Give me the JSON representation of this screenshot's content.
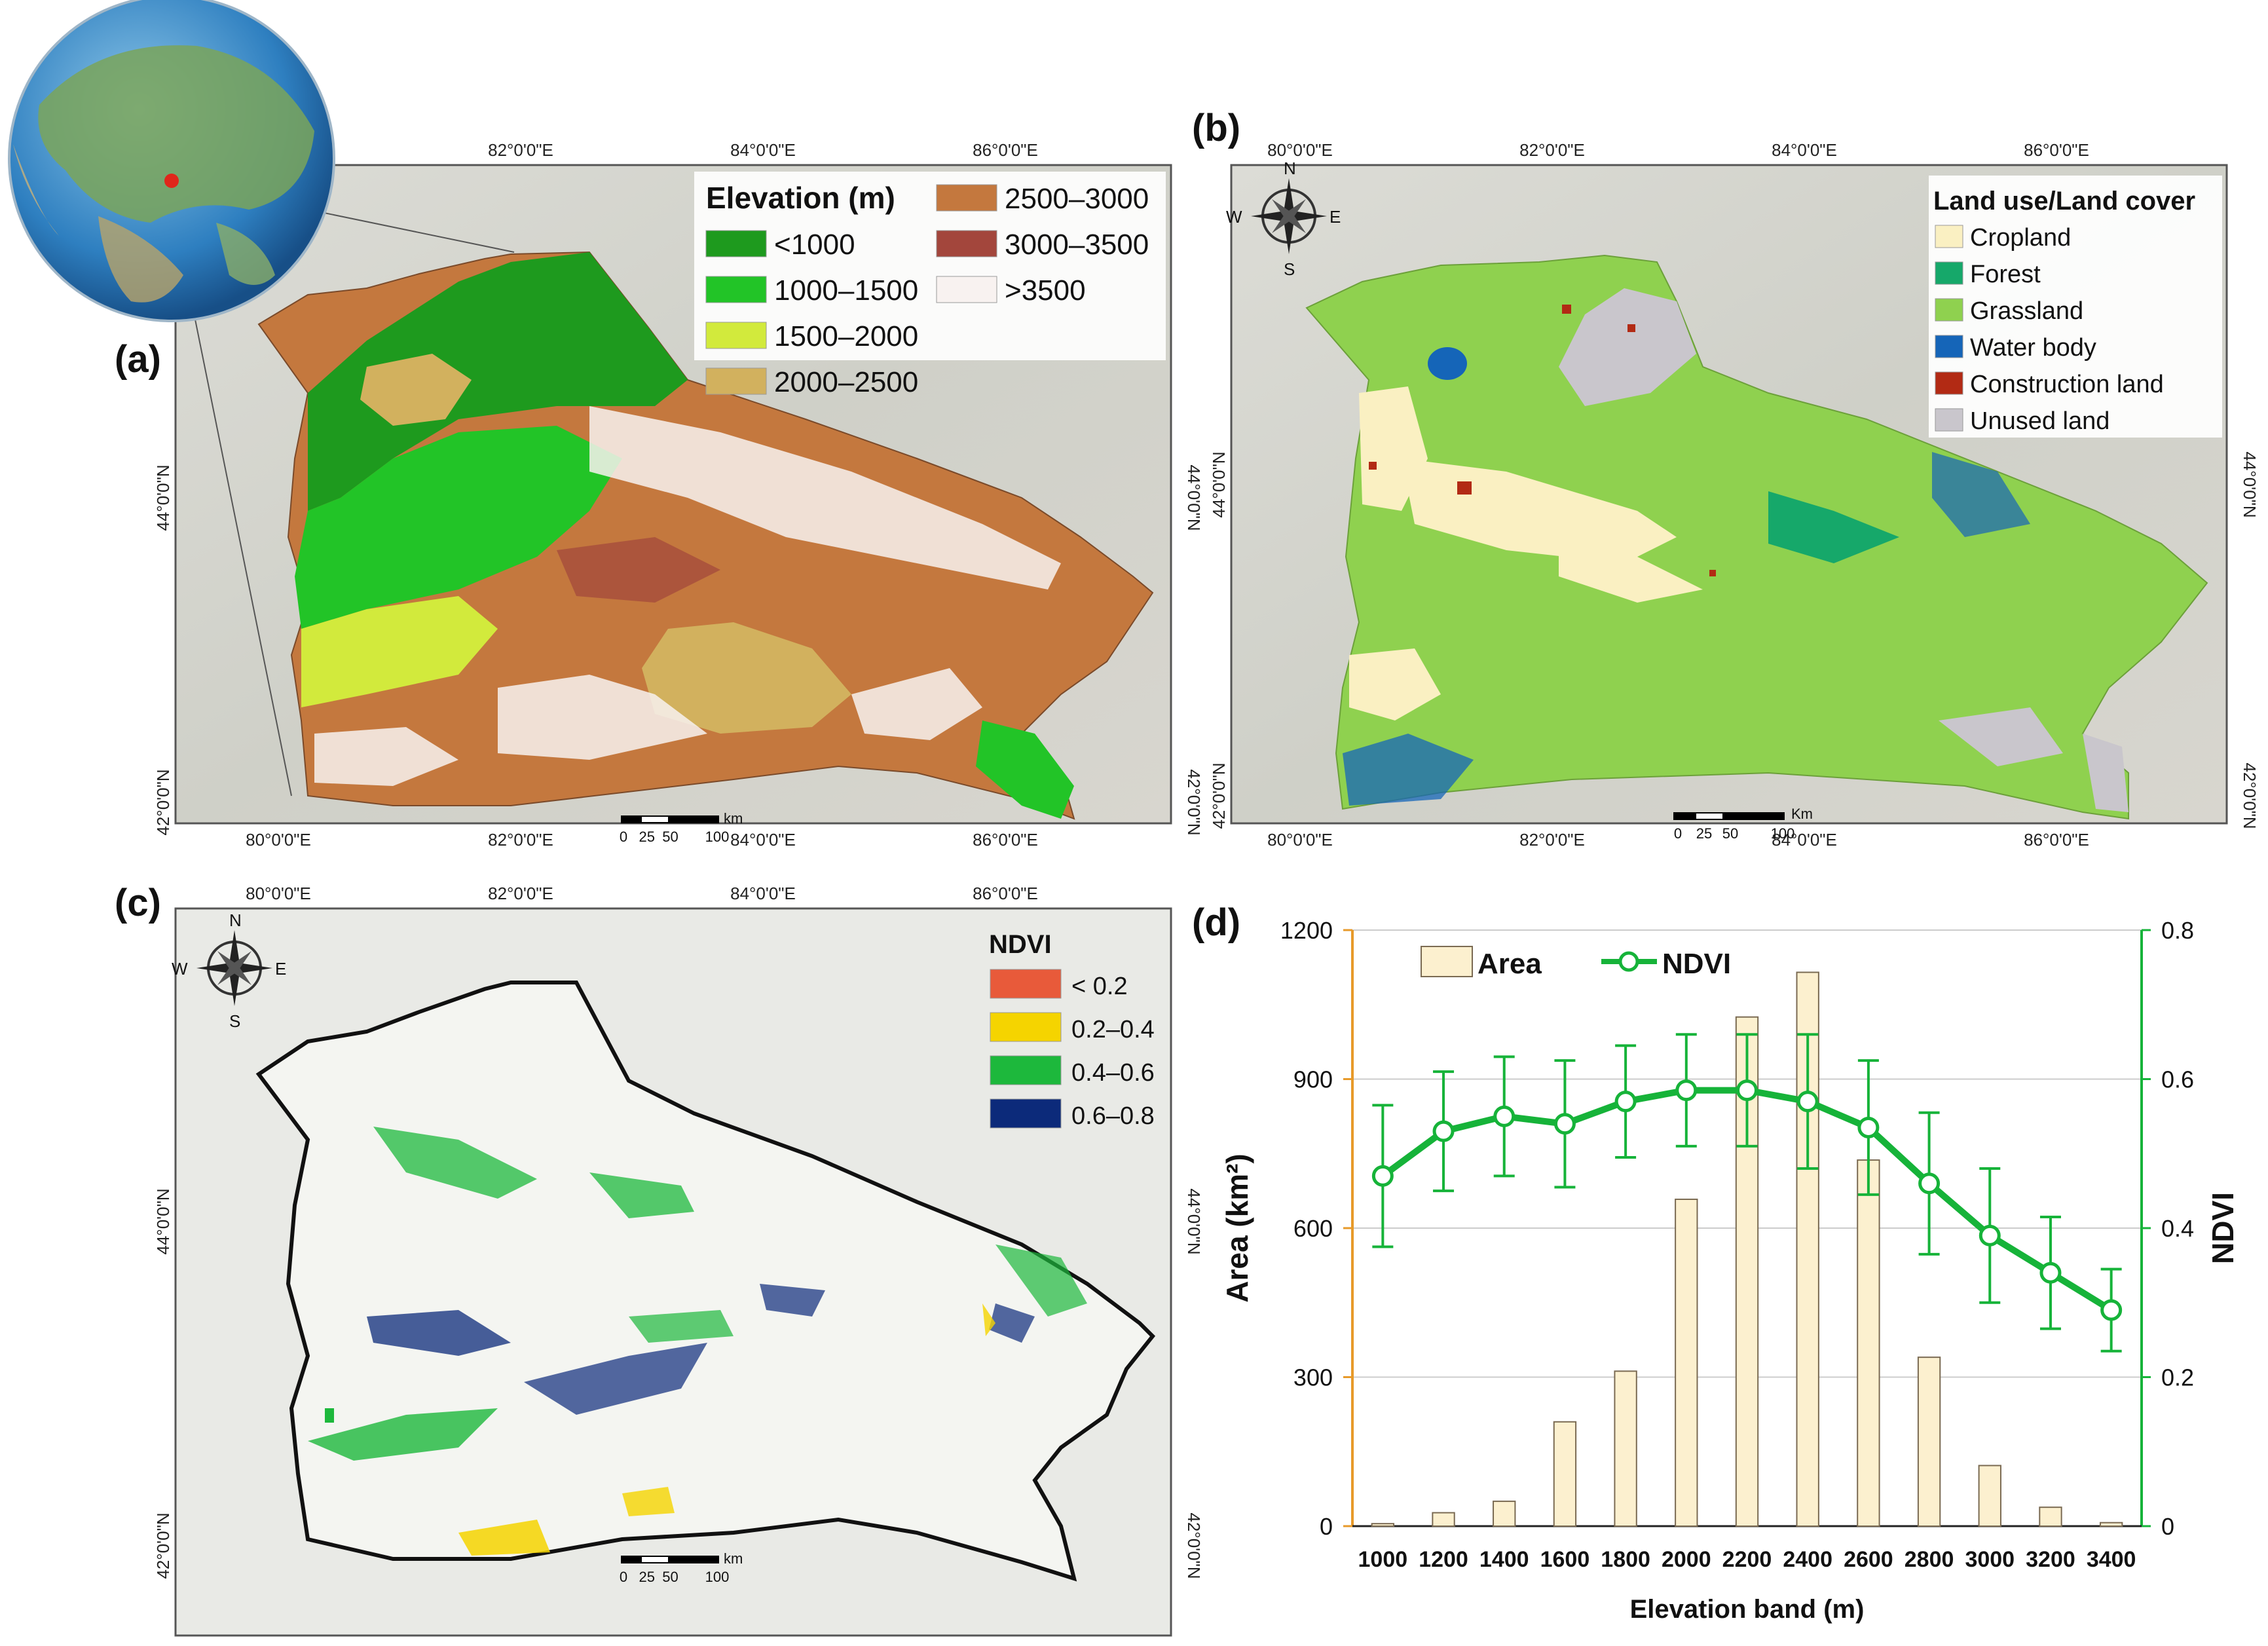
{
  "panels": {
    "a": {
      "tag": "(a)",
      "lon_ticks": [
        "82°0'0\"E",
        "84°0'0\"E",
        "86°0'0\"E"
      ],
      "lon_ticks_bottom": [
        "80°0'0\"E",
        "82°0'0\"E",
        "84°0'0\"E",
        "86°0'0\"E"
      ],
      "lat_ticks": [
        "44°0'0\"N",
        "42°0'0\"N"
      ],
      "legend_title": "Elevation (m)",
      "legend": [
        {
          "label": "<1000",
          "color": "#1e9a1e"
        },
        {
          "label": "1000–1500",
          "color": "#22c427"
        },
        {
          "label": "1500–2000",
          "color": "#d2ea3c"
        },
        {
          "label": "2000–2500",
          "color": "#d2b15e"
        },
        {
          "label": "2500–3000",
          "color": "#c4783e"
        },
        {
          "label": "3000–3500",
          "color": "#a3463c"
        },
        {
          "label": ">3500",
          "color": "#f8f2f0"
        }
      ],
      "scale": {
        "unit": "km",
        "labels": [
          "0",
          "25",
          "50",
          "100"
        ]
      }
    },
    "b": {
      "tag": "(b)",
      "lon_ticks": [
        "80°0'0\"E",
        "82°0'0\"E",
        "84°0'0\"E",
        "86°0'0\"E"
      ],
      "lon_ticks_bottom": [
        "80°0'0\"E",
        "82°0'0\"E",
        "84°0'0\"E",
        "86°0'0\"E"
      ],
      "lat_ticks": [
        "44°0'0\"N",
        "42°0'0\"N"
      ],
      "legend_title": "Land use/Land cover",
      "legend": [
        {
          "label": "Cropland",
          "color": "#faf0c2"
        },
        {
          "label": "Forest",
          "color": "#16a86a"
        },
        {
          "label": "Grassland",
          "color": "#8fd14f"
        },
        {
          "label": "Water body",
          "color": "#1565b8"
        },
        {
          "label": "Construction land",
          "color": "#b22a14"
        },
        {
          "label": "Unused land",
          "color": "#c9c6cc"
        }
      ],
      "scale": {
        "unit": "Km",
        "labels": [
          "0",
          "25",
          "50",
          "100"
        ]
      },
      "compass": {
        "n": "N",
        "s": "S",
        "e": "E",
        "w": "W"
      }
    },
    "c": {
      "tag": "(c)",
      "lon_ticks": [
        "80°0'0\"E",
        "82°0'0\"E",
        "84°0'0\"E",
        "86°0'0\"E"
      ],
      "lon_ticks_bottom": [
        "80°0'0\"E",
        "82°0'0\"E",
        "84°0'0\"E",
        "86°0'0\"E"
      ],
      "lat_ticks": [
        "44°0'0\"N",
        "42°0'0\"N"
      ],
      "legend_title": "NDVI",
      "legend": [
        {
          "label": "< 0.2",
          "color": "#e85a3a"
        },
        {
          "label": "0.2–0.4",
          "color": "#f5d400"
        },
        {
          "label": "0.4–0.6",
          "color": "#1db83c"
        },
        {
          "label": "0.6–0.8",
          "color": "#0c2a7a"
        }
      ],
      "scale": {
        "unit": "km",
        "labels": [
          "0",
          "25",
          "50",
          "100"
        ]
      },
      "compass": {
        "n": "N",
        "s": "S",
        "e": "E",
        "w": "W"
      }
    }
  },
  "chart_data": {
    "tag": "(d)",
    "type": "bar+line",
    "categories": [
      "1000",
      "1200",
      "1400",
      "1600",
      "1800",
      "2000",
      "2200",
      "2400",
      "2600",
      "2800",
      "3000",
      "3200",
      "3400"
    ],
    "xlabel": "Elevation band (m)",
    "ylabel": "Area (km²)",
    "y2label": "NDVI",
    "ylim": [
      0,
      1200
    ],
    "yticks": [
      "0",
      "300",
      "600",
      "900",
      "1200"
    ],
    "y2lim": [
      0,
      0.8
    ],
    "y2ticks": [
      "0",
      "0.2",
      "0.4",
      "0.6",
      "0.8"
    ],
    "legend": {
      "area": "Area",
      "ndvi": "NDVI"
    },
    "grid": true,
    "series": [
      {
        "name": "Area",
        "type": "bar",
        "axis": "left",
        "values": [
          5,
          27,
          50,
          210,
          312,
          658,
          1025,
          1115,
          737,
          340,
          122,
          38,
          7
        ]
      },
      {
        "name": "NDVI",
        "type": "line",
        "axis": "right",
        "values": [
          0.47,
          0.53,
          0.55,
          0.54,
          0.57,
          0.585,
          0.585,
          0.57,
          0.535,
          0.46,
          0.39,
          0.34,
          0.29
        ],
        "errors": [
          0.095,
          0.08,
          0.08,
          0.085,
          0.075,
          0.075,
          0.075,
          0.09,
          0.09,
          0.095,
          0.09,
          0.075,
          0.055
        ]
      }
    ],
    "colors": {
      "bar_fill": "#fcf0cf",
      "bar_stroke": "#7a6a52",
      "line": "#16b339",
      "left_axis": "#e79a2a",
      "right_axis": "#16b339"
    }
  },
  "globe": {
    "marker_color": "#e0261b"
  }
}
